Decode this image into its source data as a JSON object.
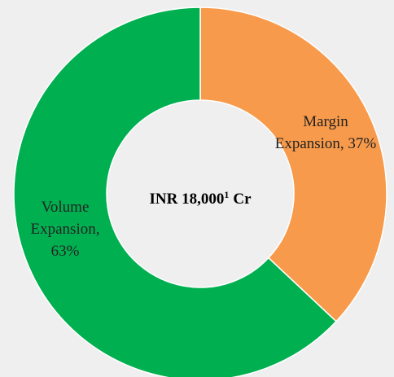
{
  "chart_data": {
    "type": "donut",
    "values": [
      37,
      63
    ],
    "value_labels": [
      [
        "Margin",
        "Expansion, 37%"
      ],
      [
        "Volume",
        "Expansion,",
        "63%"
      ]
    ],
    "colors": [
      "#f79a4b",
      "#00b050"
    ],
    "center_label": {
      "text": "INR 18,000",
      "superscript": "1",
      "suffix": "Cr"
    }
  }
}
